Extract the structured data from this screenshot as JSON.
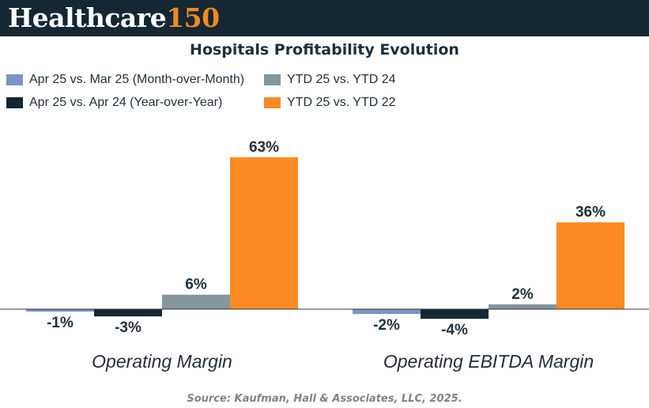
{
  "brand": {
    "word": "Healthcare",
    "number": "150"
  },
  "source": "Source: Kaufman, Hall & Associates, LLC, 2025.",
  "colors": {
    "header_bg": "#142733",
    "brand_accent": "#f2891f"
  },
  "chart_data": {
    "type": "bar",
    "title": "Hospitals Profitability Evolution",
    "categories": [
      "Operating Margin",
      "Operating EBITDA Margin"
    ],
    "legend_position": "top-left",
    "grid": false,
    "unit": "%",
    "series": [
      {
        "name": "Apr 25 vs. Mar 25 (Month-over-Month)",
        "color": "#7b93c6",
        "values": [
          -1,
          -2
        ],
        "labels": [
          "-1%",
          "-2%"
        ]
      },
      {
        "name": "Apr 25 vs. Apr 24 (Year-over-Year)",
        "color": "#142733",
        "values": [
          -3,
          -4
        ],
        "labels": [
          "-3%",
          "-4%"
        ]
      },
      {
        "name": "YTD 25 vs. YTD 24",
        "color": "#84969e",
        "values": [
          6,
          2
        ],
        "labels": [
          "6%",
          "2%"
        ]
      },
      {
        "name": "YTD 25 vs. YTD 22",
        "color": "#fb8a24",
        "values": [
          63,
          36
        ],
        "labels": [
          "63%",
          "36%"
        ]
      }
    ]
  }
}
